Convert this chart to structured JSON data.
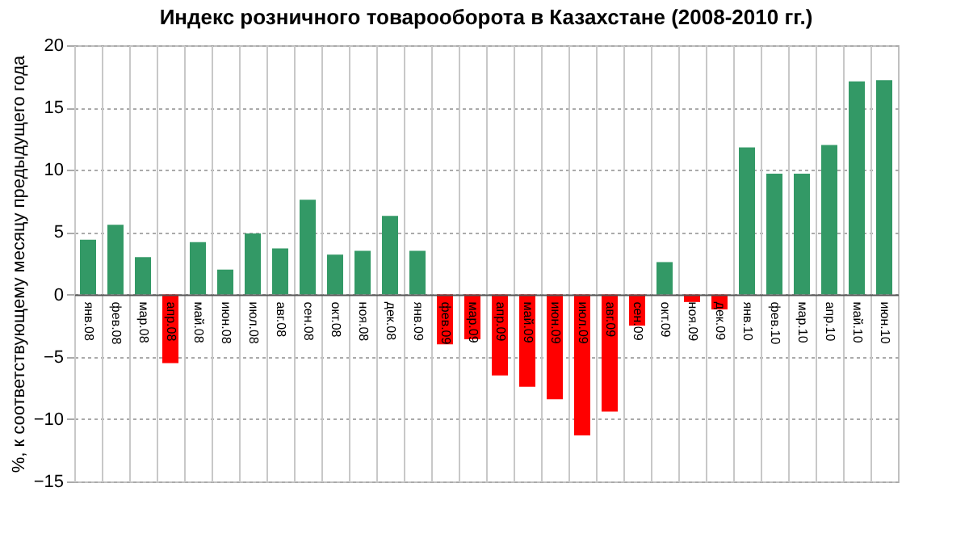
{
  "chart_data": {
    "type": "bar",
    "title": "Индекс розничного товарооборота в Казахстане (2008-2010 гг.)",
    "ylabel": "%, к соответствующему месяцу предыдущего года",
    "categories": [
      "янв.08",
      "фев.08",
      "мар.08",
      "апр.08",
      "май.08",
      "июн.08",
      "июл.08",
      "авг.08",
      "сен.08",
      "окт.08",
      "ноя.08",
      "дек.08",
      "янв.09",
      "фев.09",
      "мар.09",
      "апр.09",
      "май.09",
      "июн.09",
      "июл.09",
      "авг.09",
      "сен.09",
      "окт.09",
      "ноя.09",
      "дек.09",
      "янв.10",
      "фев.10",
      "мар.10",
      "апр.10",
      "май.10",
      "июн.10"
    ],
    "values": [
      4.4,
      5.6,
      3.0,
      -5.5,
      4.2,
      2.0,
      4.9,
      3.7,
      7.6,
      3.2,
      3.5,
      6.3,
      3.5,
      -4.0,
      -3.6,
      -6.5,
      -7.4,
      -8.4,
      -11.3,
      -9.4,
      -2.5,
      2.6,
      -0.6,
      -1.2,
      11.8,
      9.7,
      9.7,
      12.0,
      17.1,
      17.2
    ],
    "colors": [
      "#339966",
      "#339966",
      "#339966",
      "#ff0000",
      "#339966",
      "#339966",
      "#339966",
      "#339966",
      "#339966",
      "#339966",
      "#339966",
      "#339966",
      "#339966",
      "#ff0000",
      "#ff0000",
      "#ff0000",
      "#ff0000",
      "#ff0000",
      "#ff0000",
      "#ff0000",
      "#ff0000",
      "#339966",
      "#ff0000",
      "#ff0000",
      "#339966",
      "#339966",
      "#339966",
      "#339966",
      "#339966",
      "#339966"
    ],
    "ylim": [
      -15,
      20
    ],
    "yticks": [
      -15,
      -10,
      -5,
      0,
      5,
      10,
      15,
      20
    ],
    "grid": true
  }
}
